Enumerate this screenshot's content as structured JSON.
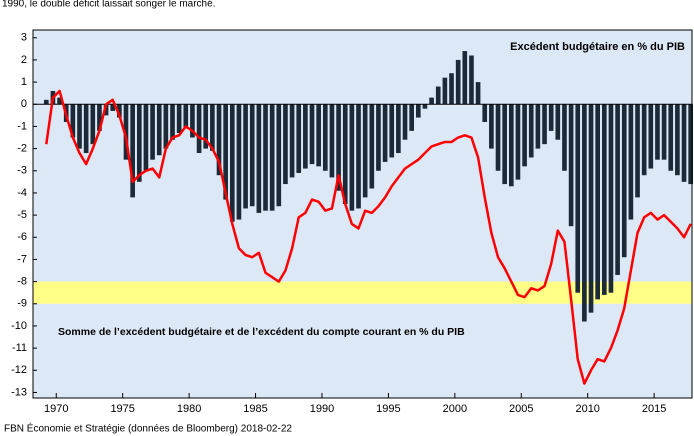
{
  "chart_data": {
    "type": "bar_line",
    "title": "1990, le double déficit laissait songer le marché.",
    "source": "FBN Économie et Stratégie (données de Bloomberg) 2018-02-22",
    "annotations": [
      {
        "text": "Excédent budgétaire en % du PIB",
        "color": "#000000"
      },
      {
        "text": "Somme de l’excédent budgétaire et de l’excédent du compte courant en % du PIB",
        "color": "#ff0000"
      }
    ],
    "band": {
      "range": [
        -9,
        -8
      ],
      "color": "#ffff88"
    },
    "background": "#dde8f7",
    "x": [
      1969,
      1969.5,
      1970,
      1970.5,
      1971,
      1971.5,
      1972,
      1972.5,
      1973,
      1973.5,
      1974,
      1974.5,
      1975,
      1975.5,
      1976,
      1976.5,
      1977,
      1977.5,
      1978,
      1978.5,
      1979,
      1979.5,
      1980,
      1980.5,
      1981,
      1981.5,
      1982,
      1982.5,
      1983,
      1983.5,
      1984,
      1984.5,
      1985,
      1985.5,
      1986,
      1986.5,
      1987,
      1987.5,
      1988,
      1988.5,
      1989,
      1989.5,
      1990,
      1990.5,
      1991,
      1991.5,
      1992,
      1992.5,
      1993,
      1993.5,
      1994,
      1994.5,
      1995,
      1995.5,
      1996,
      1996.5,
      1997,
      1997.5,
      1998,
      1998.5,
      1999,
      1999.5,
      2000,
      2000.5,
      2001,
      2001.5,
      2002,
      2002.5,
      2003,
      2003.5,
      2004,
      2004.5,
      2005,
      2005.5,
      2006,
      2006.5,
      2007,
      2007.5,
      2008,
      2008.5,
      2009,
      2009.5,
      2010,
      2010.5,
      2011,
      2011.5,
      2012,
      2012.5,
      2013,
      2013.5,
      2014,
      2014.5,
      2015,
      2015.5,
      2016,
      2016.5,
      2017,
      2017.5
    ],
    "series": [
      {
        "name": "Excédent budgétaire en % du PIB",
        "type": "bar",
        "color": "#1c2a38",
        "values": [
          0.2,
          0.6,
          0.3,
          -0.8,
          -1.5,
          -2.0,
          -2.2,
          -1.8,
          -1.2,
          -0.5,
          -0.3,
          -0.6,
          -2.5,
          -4.2,
          -3.5,
          -3.0,
          -2.5,
          -2.3,
          -2.0,
          -1.6,
          -1.3,
          -1.1,
          -1.5,
          -2.2,
          -2.0,
          -2.1,
          -3.2,
          -4.3,
          -5.3,
          -5.2,
          -4.7,
          -4.6,
          -4.9,
          -4.8,
          -4.8,
          -4.6,
          -3.6,
          -3.3,
          -3.1,
          -2.9,
          -2.7,
          -2.8,
          -3.0,
          -3.3,
          -3.9,
          -4.5,
          -4.8,
          -4.7,
          -4.2,
          -3.8,
          -3.0,
          -2.6,
          -2.4,
          -2.2,
          -1.6,
          -1.2,
          -0.6,
          -0.2,
          0.3,
          0.8,
          1.2,
          1.4,
          2.0,
          2.4,
          2.2,
          1.0,
          -0.8,
          -2.0,
          -3.0,
          -3.6,
          -3.7,
          -3.4,
          -2.8,
          -2.4,
          -2.0,
          -1.8,
          -1.2,
          -1.6,
          -3.0,
          -5.5,
          -8.5,
          -9.8,
          -9.4,
          -8.8,
          -8.6,
          -8.5,
          -7.7,
          -6.9,
          -5.2,
          -4.2,
          -3.2,
          -2.9,
          -2.5,
          -2.5,
          -3.0,
          -3.2,
          -3.5,
          -3.6
        ]
      },
      {
        "name": "Somme de l’excédent budgétaire et de l’excédent du compte courant en % du PIB",
        "type": "line",
        "color": "#ff0000",
        "values": [
          -1.8,
          0.3,
          0.6,
          -0.5,
          -1.5,
          -2.2,
          -2.7,
          -2.0,
          -1.2,
          0.0,
          0.2,
          -0.5,
          -1.5,
          -3.5,
          -3.2,
          -3.0,
          -2.9,
          -3.3,
          -2.0,
          -1.5,
          -1.4,
          -1.0,
          -1.2,
          -1.5,
          -1.6,
          -2.0,
          -2.6,
          -4.0,
          -5.4,
          -6.5,
          -6.8,
          -6.9,
          -6.7,
          -7.6,
          -7.8,
          -8.0,
          -7.5,
          -6.5,
          -5.1,
          -4.9,
          -4.3,
          -4.4,
          -4.8,
          -4.7,
          -3.2,
          -4.5,
          -5.4,
          -5.6,
          -4.8,
          -4.9,
          -4.6,
          -4.2,
          -3.7,
          -3.3,
          -2.9,
          -2.7,
          -2.5,
          -2.2,
          -1.9,
          -1.8,
          -1.7,
          -1.7,
          -1.5,
          -1.4,
          -1.5,
          -2.4,
          -4.2,
          -5.8,
          -6.9,
          -7.4,
          -8.0,
          -8.6,
          -8.7,
          -8.3,
          -8.4,
          -8.2,
          -7.2,
          -5.7,
          -6.2,
          -8.8,
          -11.5,
          -12.6,
          -12.0,
          -11.5,
          -11.6,
          -11.0,
          -10.2,
          -9.2,
          -7.5,
          -5.8,
          -5.1,
          -4.9,
          -5.2,
          -5.0,
          -5.3,
          -5.6,
          -6.0,
          -5.4
        ]
      }
    ],
    "xlim": [
      1968.25,
      2017.85
    ],
    "xticks": [
      1970,
      1975,
      1980,
      1985,
      1990,
      1995,
      2000,
      2005,
      2010,
      2015
    ],
    "ylim": [
      -13.25,
      3.35
    ],
    "yticks": [
      3,
      2,
      1,
      0,
      -1,
      -2,
      -3,
      -4,
      -5,
      -6,
      -7,
      -8,
      -9,
      -10,
      -11,
      -12,
      -13
    ]
  }
}
